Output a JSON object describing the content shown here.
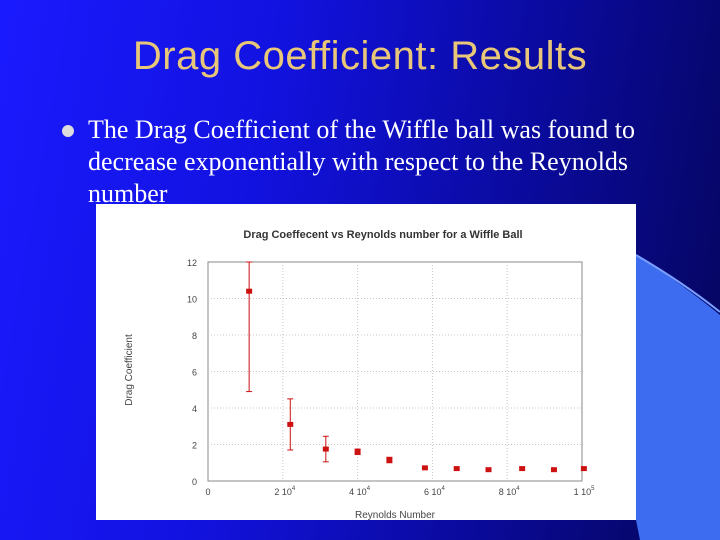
{
  "slide": {
    "title": "Drag Coefficient: Results",
    "bullet": "The Drag Coefficient of the Wiffle ball was found to decrease exponentially with respect to the Reynolds number"
  },
  "colors": {
    "background": "#1212e0",
    "title": "#e8c878",
    "swoosh": "#3d6cf0",
    "marker": "#cc1111"
  },
  "chart_data": {
    "type": "scatter",
    "title": "Drag Coeffecent vs Reynolds number for a Wiffle Ball",
    "xlabel": "Reynolds Number",
    "ylabel": "Drag Coefficient",
    "xlim": [
      0,
      100000
    ],
    "ylim": [
      0,
      12
    ],
    "x_ticks": [
      0,
      20000,
      40000,
      60000,
      80000,
      100000
    ],
    "x_tick_labels": [
      {
        "base": "0",
        "exp": ""
      },
      {
        "base": "2 10",
        "exp": "4"
      },
      {
        "base": "4 10",
        "exp": "4"
      },
      {
        "base": "6 10",
        "exp": "4"
      },
      {
        "base": "8 10",
        "exp": "4"
      },
      {
        "base": "1 10",
        "exp": "5"
      }
    ],
    "y_ticks": [
      0,
      2,
      4,
      6,
      8,
      10,
      12
    ],
    "y_tick_labels": [
      "0",
      "2",
      "4",
      "6",
      "8",
      "10",
      "12"
    ],
    "grid": true,
    "points": [
      {
        "x": 11000,
        "y": 10.4,
        "err_low": 4.9,
        "err_high": 12.0
      },
      {
        "x": 22000,
        "y": 3.1,
        "err_low": 1.7,
        "err_high": 4.5
      },
      {
        "x": 31500,
        "y": 1.75,
        "err_low": 1.05,
        "err_high": 2.45
      },
      {
        "x": 40000,
        "y": 1.6,
        "err_low": 1.45,
        "err_high": 1.75
      },
      {
        "x": 48500,
        "y": 1.15,
        "err_low": 1.0,
        "err_high": 1.3
      },
      {
        "x": 58000,
        "y": 0.72
      },
      {
        "x": 66500,
        "y": 0.68
      },
      {
        "x": 75000,
        "y": 0.62
      },
      {
        "x": 84000,
        "y": 0.68
      },
      {
        "x": 92500,
        "y": 0.62
      },
      {
        "x": 100500,
        "y": 0.68
      }
    ]
  }
}
